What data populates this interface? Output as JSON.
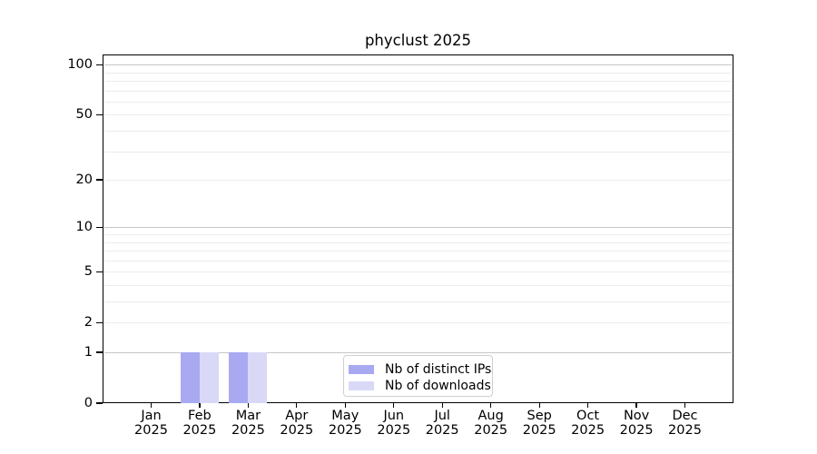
{
  "chart_data": {
    "type": "bar",
    "title": "phyclust 2025",
    "x_months": [
      "Jan",
      "Feb",
      "Mar",
      "Apr",
      "May",
      "Jun",
      "Jul",
      "Aug",
      "Sep",
      "Oct",
      "Nov",
      "Dec"
    ],
    "x_year": "2025",
    "series": [
      {
        "name": "Nb of distinct IPs",
        "color": "#a9a9f2",
        "values": [
          0,
          1,
          1,
          0,
          0,
          0,
          0,
          0,
          0,
          0,
          0,
          0
        ]
      },
      {
        "name": "Nb of downloads",
        "color": "#d9d9f7",
        "values": [
          0,
          1,
          1,
          0,
          0,
          0,
          0,
          0,
          0,
          0,
          0,
          0
        ]
      }
    ],
    "yticks": [
      0,
      1,
      2,
      5,
      10,
      20,
      50,
      100
    ],
    "minor_gridlines": [
      3,
      4,
      6,
      7,
      8,
      9,
      30,
      40,
      60,
      70,
      80,
      90
    ],
    "emphasized_gridlines": [
      1,
      10,
      100
    ],
    "ylim": [
      0,
      115
    ],
    "yscale": "log1p",
    "xlabel": "",
    "ylabel": "",
    "grid": true,
    "legend_position": "lower center"
  },
  "colors": {
    "spine": "#000000",
    "gridline_minor": "#ececec",
    "gridline_emphasized": "#c6c6c6",
    "background": "#ffffff",
    "legend_border": "#d0d0d0"
  }
}
